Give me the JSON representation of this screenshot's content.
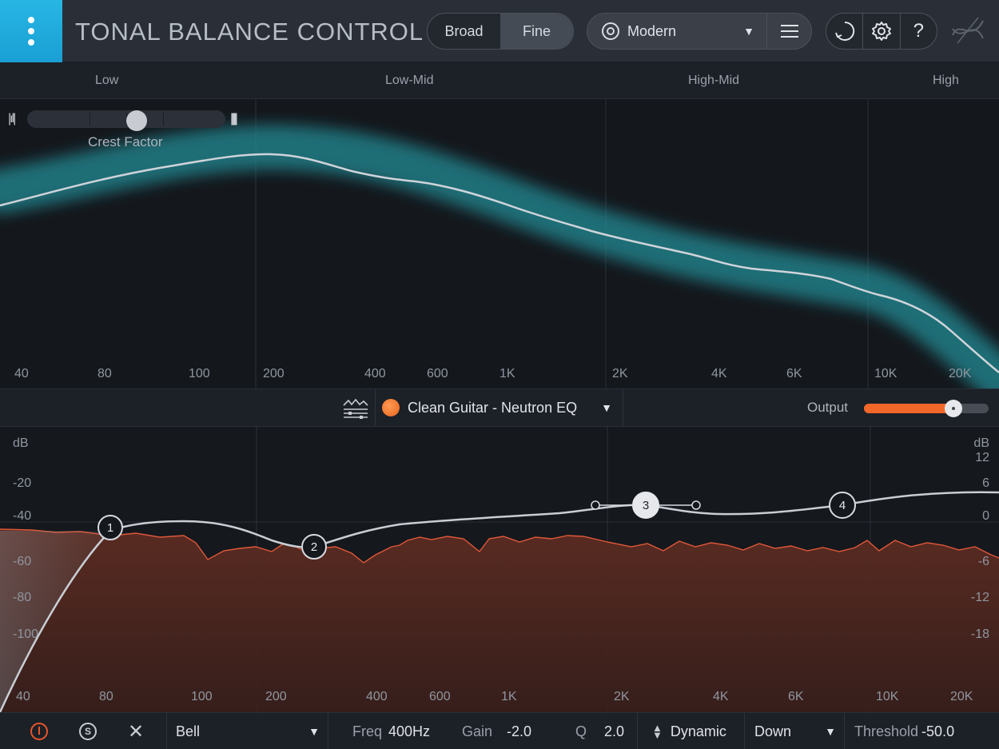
{
  "header": {
    "app_title": "TONAL BALANCE CONTROL",
    "view_modes": [
      "Broad",
      "Fine"
    ],
    "active_view": "Fine",
    "target": {
      "label": "Modern"
    },
    "icons": [
      "menu-dots-icon",
      "target-icon",
      "list-icon",
      "history-icon",
      "gear-icon",
      "help-icon",
      "izotope-logo-icon"
    ],
    "help_label": "?"
  },
  "ranges": [
    "Low",
    "Low-Mid",
    "High-Mid",
    "High"
  ],
  "crest_factor": {
    "label": "Crest Factor",
    "value": 0.5
  },
  "top_freq_labels": [
    "40",
    "80",
    "100",
    "200",
    "400",
    "600",
    "1K",
    "2K",
    "4K",
    "6K",
    "10K",
    "20K"
  ],
  "preset": {
    "label": "Clean Guitar - Neutron EQ"
  },
  "output": {
    "label": "Output",
    "value": 0.72
  },
  "eq": {
    "left_unit": "dB",
    "right_unit": "dB",
    "left_db_labels": [
      "-20",
      "-40",
      "-60",
      "-80",
      "-100"
    ],
    "right_db_labels": [
      "12",
      "6",
      "0",
      "-6",
      "-12",
      "-18"
    ],
    "freq_labels": [
      "40",
      "80",
      "100",
      "200",
      "400",
      "600",
      "1K",
      "2K",
      "4K",
      "6K",
      "10K",
      "20K"
    ],
    "nodes": [
      "1",
      "2",
      "3",
      "4"
    ],
    "selected_node": "3"
  },
  "bottom": {
    "filter_type": "Bell",
    "freq_label": "Freq",
    "freq_value": "400Hz",
    "gain_label": "Gain",
    "gain_value": "-2.0",
    "q_label": "Q",
    "q_value": "2.0",
    "dynamic_label": "Dynamic",
    "direction": "Down",
    "threshold_label": "Threshold",
    "threshold_value": "-50.0",
    "solo_label": "S",
    "close_label": "✕"
  }
}
